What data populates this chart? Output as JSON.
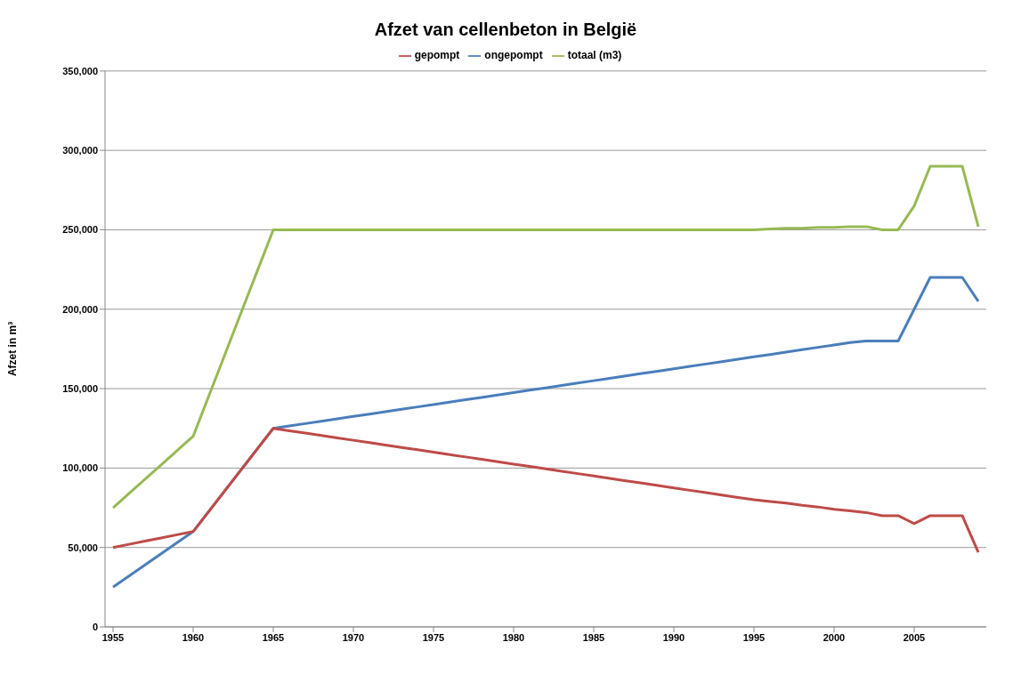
{
  "chart_data": {
    "type": "line",
    "title": "Afzet van cellenbeton in België",
    "ylabel": "Afzet in m³",
    "x": [
      1955,
      1956,
      1957,
      1958,
      1959,
      1960,
      1961,
      1962,
      1963,
      1964,
      1965,
      1966,
      1967,
      1968,
      1969,
      1970,
      1971,
      1972,
      1973,
      1974,
      1975,
      1976,
      1977,
      1978,
      1979,
      1980,
      1981,
      1982,
      1983,
      1984,
      1985,
      1986,
      1987,
      1988,
      1989,
      1990,
      1991,
      1992,
      1993,
      1994,
      1995,
      1996,
      1997,
      1998,
      1999,
      2000,
      2001,
      2002,
      2003,
      2004,
      2005,
      2006,
      2007,
      2008,
      2009
    ],
    "series": [
      {
        "name": "ongepompt",
        "color": "#4a7ebb",
        "values": [
          25000,
          32000,
          39000,
          46000,
          53000,
          60000,
          73000,
          86000,
          99000,
          112000,
          125000,
          126500,
          128000,
          129500,
          131000,
          132500,
          134000,
          135500,
          137000,
          138500,
          140000,
          141500,
          143000,
          144500,
          146000,
          147500,
          149000,
          150500,
          152000,
          153500,
          155000,
          156500,
          158000,
          159500,
          161000,
          162500,
          164000,
          165500,
          167000,
          168500,
          170000,
          171500,
          173000,
          174500,
          176000,
          177500,
          179000,
          180000,
          180000,
          180000,
          200000,
          220000,
          220000,
          220000,
          205000
        ]
      },
      {
        "name": "gepompt",
        "color": "#be4b48",
        "values": [
          50000,
          52000,
          54000,
          56000,
          58000,
          60000,
          73000,
          86000,
          99000,
          112000,
          125000,
          123500,
          122000,
          120500,
          119000,
          117500,
          116000,
          114500,
          113000,
          111500,
          110000,
          108500,
          107000,
          105500,
          104000,
          102500,
          101000,
          99500,
          98000,
          96500,
          95000,
          93500,
          92000,
          90500,
          89000,
          87500,
          86000,
          84500,
          83000,
          81500,
          80000,
          79000,
          78000,
          76500,
          75500,
          74000,
          73000,
          72000,
          70000,
          70000,
          65000,
          70000,
          70000,
          70000,
          47000
        ]
      },
      {
        "name": "totaal (m3)",
        "color": "#98b954",
        "values": [
          75000,
          84000,
          93000,
          102000,
          111000,
          120000,
          146000,
          172000,
          198000,
          224000,
          250000,
          250000,
          250000,
          250000,
          250000,
          250000,
          250000,
          250000,
          250000,
          250000,
          250000,
          250000,
          250000,
          250000,
          250000,
          250000,
          250000,
          250000,
          250000,
          250000,
          250000,
          250000,
          250000,
          250000,
          250000,
          250000,
          250000,
          250000,
          250000,
          250000,
          250000,
          250500,
          251000,
          251000,
          251500,
          251500,
          252000,
          252000,
          250000,
          250000,
          265000,
          290000,
          290000,
          290000,
          252000
        ]
      }
    ],
    "xlim": [
      1954.5,
      2009.5
    ],
    "xticks": [
      1955,
      1960,
      1965,
      1970,
      1975,
      1980,
      1985,
      1990,
      1995,
      2000,
      2005
    ],
    "ylim": [
      0,
      350000
    ],
    "yticks": [
      0,
      {
        "value": 50000,
        "label": "50,000"
      },
      {
        "value": 100000,
        "label": "100,000"
      },
      {
        "value": 150000,
        "label": "150,000"
      },
      {
        "value": 200000,
        "label": "200,000"
      },
      {
        "value": 250000,
        "label": "250,000"
      },
      {
        "value": 300000,
        "label": "300,000"
      },
      {
        "value": 350000,
        "label": "350,000"
      }
    ],
    "grid": "y",
    "legend": "top",
    "marker": "none",
    "line_style": "solid"
  }
}
